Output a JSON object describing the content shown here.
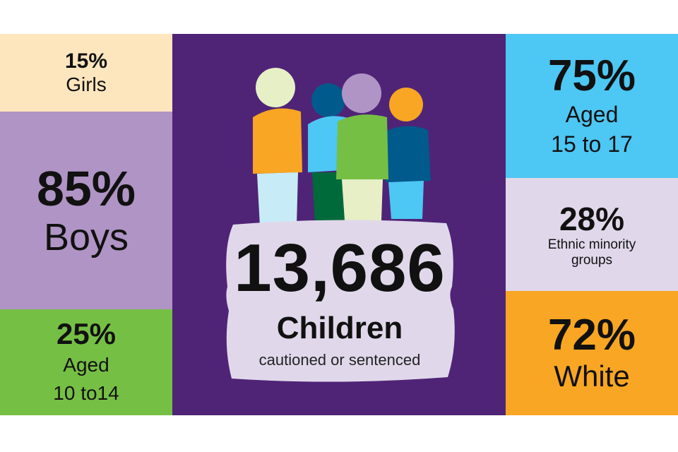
{
  "left": {
    "girls": {
      "percent": "15%",
      "label": "Girls"
    },
    "boys": {
      "percent": "85%",
      "label": "Boys"
    },
    "aged_young": {
      "percent": "25%",
      "label_line1": "Aged",
      "label_line2": "10 to14"
    }
  },
  "centre": {
    "count": "13,686",
    "label": "Children",
    "sublabel": "cautioned or sentenced",
    "icon": "people-group-icon"
  },
  "right": {
    "aged_older": {
      "percent": "75%",
      "label_line1": "Aged",
      "label_line2": "15 to 17"
    },
    "ethnic_minority": {
      "percent": "28%",
      "label_line1": "Ethnic minority",
      "label_line2": "groups"
    },
    "white": {
      "percent": "72%",
      "label": "White"
    }
  },
  "colors": {
    "girls": "#fde5bd",
    "boys": "#b094c5",
    "aged_young": "#76bf45",
    "centre": "#4f2477",
    "aged_older": "#4dc7f4",
    "ethnic_minority": "#e0d8ea",
    "white": "#f8a623"
  }
}
